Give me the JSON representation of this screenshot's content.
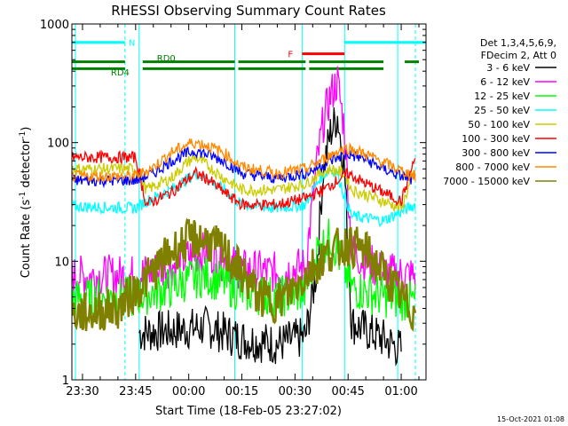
{
  "chart_data": {
    "type": "line",
    "title": "RHESSI Observing Summary Count Rates",
    "xlabel": "Start Time (18-Feb-05 23:27:02)",
    "ylabel": "Count Rate (s",
    "ylabel_sup": "-1",
    "ylabel_tail": " detector",
    "ylabel_sup2": "-1",
    "ylabel_close": ")",
    "yscale": "log",
    "ylim": [
      1,
      1000
    ],
    "xlim": [
      "23:27",
      "01:07"
    ],
    "y_ticks": [
      "1",
      "10",
      "100",
      "1000"
    ],
    "x_ticks": [
      "23:30",
      "23:45",
      "00:00",
      "00:15",
      "00:30",
      "00:45",
      "01:00"
    ],
    "legend_header": [
      "Det 1,3,4,5,6,9,",
      "FDecim 2, Att 0"
    ],
    "legend_position": "right",
    "series": [
      {
        "name": "3 - 6 keV",
        "color": "#000000",
        "points": [
          [
            "23:46",
            2.5
          ],
          [
            "23:55",
            2.6
          ],
          [
            "00:05",
            2.8
          ],
          [
            "00:15",
            2.2
          ],
          [
            "00:25",
            2.0
          ],
          [
            "00:33",
            2.3
          ],
          [
            "00:36",
            8
          ],
          [
            "00:38",
            60
          ],
          [
            "00:40",
            120
          ],
          [
            "00:42",
            170
          ],
          [
            "00:44",
            60
          ],
          [
            "00:46",
            3
          ],
          [
            "00:55",
            2.2
          ],
          [
            "01:00",
            1.8
          ]
        ]
      },
      {
        "name": "6 - 12 keV",
        "color": "#ff00ff",
        "points": [
          [
            "23:27",
            7.5
          ],
          [
            "23:45",
            7.6
          ],
          [
            "23:55",
            9
          ],
          [
            "00:00",
            11
          ],
          [
            "00:05",
            12
          ],
          [
            "00:10",
            10
          ],
          [
            "00:15",
            8.5
          ],
          [
            "00:25",
            8
          ],
          [
            "00:33",
            9
          ],
          [
            "00:36",
            60
          ],
          [
            "00:38",
            150
          ],
          [
            "00:40",
            250
          ],
          [
            "00:42",
            330
          ],
          [
            "00:44",
            130
          ],
          [
            "00:46",
            12
          ],
          [
            "00:55",
            8
          ],
          [
            "01:04",
            7.5
          ]
        ]
      },
      {
        "name": "12 - 25 keV",
        "color": "#00ff00",
        "points": [
          [
            "23:27",
            4.8
          ],
          [
            "23:45",
            5
          ],
          [
            "23:55",
            6
          ],
          [
            "00:00",
            7
          ],
          [
            "00:05",
            7.5
          ],
          [
            "00:10",
            6.5
          ],
          [
            "00:15",
            5.5
          ],
          [
            "00:25",
            5
          ],
          [
            "00:33",
            5.5
          ],
          [
            "00:36",
            12
          ],
          [
            "00:40",
            16
          ],
          [
            "00:43",
            10
          ],
          [
            "00:46",
            6
          ],
          [
            "00:55",
            5
          ],
          [
            "01:04",
            4.5
          ]
        ]
      },
      {
        "name": "25 - 50 keV",
        "color": "#00ffff",
        "points": [
          [
            "23:27",
            29
          ],
          [
            "23:45",
            28
          ],
          [
            "23:48",
            32
          ],
          [
            "23:55",
            40
          ],
          [
            "00:00",
            50
          ],
          [
            "00:02",
            55
          ],
          [
            "00:05",
            50
          ],
          [
            "00:10",
            40
          ],
          [
            "00:15",
            30
          ],
          [
            "00:25",
            28
          ],
          [
            "00:33",
            30
          ],
          [
            "00:37",
            50
          ],
          [
            "00:40",
            60
          ],
          [
            "00:42",
            55
          ],
          [
            "00:44",
            35
          ],
          [
            "00:46",
            24
          ],
          [
            "00:55",
            22
          ],
          [
            "01:04",
            30
          ]
        ]
      },
      {
        "name": "50 - 100 keV",
        "color": "#cccc00",
        "points": [
          [
            "23:27",
            60
          ],
          [
            "23:45",
            60
          ],
          [
            "23:48",
            40
          ],
          [
            "23:55",
            50
          ],
          [
            "00:00",
            70
          ],
          [
            "00:02",
            75
          ],
          [
            "00:05",
            65
          ],
          [
            "00:10",
            50
          ],
          [
            "00:15",
            40
          ],
          [
            "00:25",
            40
          ],
          [
            "00:33",
            45
          ],
          [
            "00:37",
            55
          ],
          [
            "00:40",
            60
          ],
          [
            "00:44",
            55
          ],
          [
            "00:46",
            40
          ],
          [
            "00:55",
            32
          ],
          [
            "01:00",
            28
          ],
          [
            "01:04",
            60
          ]
        ]
      },
      {
        "name": "100 - 300 keV",
        "color": "#ff0000",
        "points": [
          [
            "23:27",
            75
          ],
          [
            "23:45",
            75
          ],
          [
            "23:48",
            30
          ],
          [
            "23:55",
            38
          ],
          [
            "00:00",
            50
          ],
          [
            "00:02",
            55
          ],
          [
            "00:05",
            50
          ],
          [
            "00:10",
            38
          ],
          [
            "00:15",
            30
          ],
          [
            "00:25",
            30
          ],
          [
            "00:33",
            34
          ],
          [
            "00:38",
            40
          ],
          [
            "00:42",
            48
          ],
          [
            "00:45",
            55
          ],
          [
            "00:50",
            45
          ],
          [
            "00:55",
            38
          ],
          [
            "01:00",
            32
          ],
          [
            "01:04",
            75
          ]
        ]
      },
      {
        "name": "300 - 800 keV",
        "color": "#0000ff",
        "points": [
          [
            "23:27",
            48
          ],
          [
            "23:45",
            48
          ],
          [
            "23:50",
            55
          ],
          [
            "23:55",
            70
          ],
          [
            "00:00",
            82
          ],
          [
            "00:02",
            85
          ],
          [
            "00:05",
            80
          ],
          [
            "00:10",
            70
          ],
          [
            "00:15",
            55
          ],
          [
            "00:25",
            50
          ],
          [
            "00:33",
            55
          ],
          [
            "00:38",
            65
          ],
          [
            "00:42",
            75
          ],
          [
            "00:45",
            80
          ],
          [
            "00:50",
            72
          ],
          [
            "00:55",
            60
          ],
          [
            "01:00",
            52
          ],
          [
            "01:04",
            48
          ]
        ]
      },
      {
        "name": "800 - 7000 keV",
        "color": "#ff8800",
        "points": [
          [
            "23:27",
            52
          ],
          [
            "23:45",
            52
          ],
          [
            "23:50",
            62
          ],
          [
            "23:55",
            82
          ],
          [
            "00:00",
            98
          ],
          [
            "00:02",
            100
          ],
          [
            "00:05",
            95
          ],
          [
            "00:10",
            82
          ],
          [
            "00:15",
            62
          ],
          [
            "00:25",
            55
          ],
          [
            "00:33",
            60
          ],
          [
            "00:38",
            72
          ],
          [
            "00:42",
            85
          ],
          [
            "00:45",
            90
          ],
          [
            "00:50",
            80
          ],
          [
            "00:55",
            68
          ],
          [
            "01:00",
            58
          ],
          [
            "01:04",
            52
          ]
        ]
      },
      {
        "name": "7000 - 15000 keV",
        "color": "#808000",
        "points": [
          [
            "23:27",
            3.5
          ],
          [
            "23:40",
            4
          ],
          [
            "23:48",
            7
          ],
          [
            "23:55",
            12
          ],
          [
            "00:00",
            15
          ],
          [
            "00:02",
            15.5
          ],
          [
            "00:05",
            15
          ],
          [
            "00:10",
            12
          ],
          [
            "00:15",
            8
          ],
          [
            "00:20",
            5
          ],
          [
            "00:25",
            4.5
          ],
          [
            "00:30",
            6
          ],
          [
            "00:35",
            9
          ],
          [
            "00:40",
            12
          ],
          [
            "00:45",
            14
          ],
          [
            "00:50",
            12
          ],
          [
            "00:55",
            8
          ],
          [
            "01:00",
            5
          ],
          [
            "01:04",
            3.5
          ]
        ]
      }
    ],
    "annotations": [
      {
        "text": "N",
        "color": "#00ffff"
      },
      {
        "text": "RD0",
        "color": "#008000"
      },
      {
        "text": "RD4",
        "color": "#008000"
      },
      {
        "text": "F",
        "color": "#ff0000"
      }
    ],
    "bars": [
      {
        "label": "N",
        "color": "#00ffff",
        "y": 700,
        "segments": [
          [
            "23:27",
            "23:42"
          ],
          [
            "00:44",
            "01:07"
          ]
        ]
      },
      {
        "label": "F",
        "color": "#ff0000",
        "y": 560,
        "segments": [
          [
            "00:32",
            "00:44"
          ]
        ]
      },
      {
        "label": "RD0",
        "color": "#008000",
        "y": 480,
        "segments": [
          [
            "23:27",
            "23:42"
          ],
          [
            "23:47",
            "00:13"
          ],
          [
            "00:14",
            "00:33"
          ],
          [
            "00:34",
            "00:55"
          ],
          [
            "01:01",
            "01:05"
          ]
        ]
      },
      {
        "label": "RD4",
        "color": "#008000",
        "y": 420,
        "segments": [
          [
            "23:27",
            "23:42"
          ],
          [
            "23:47",
            "00:13"
          ],
          [
            "00:14",
            "00:33"
          ],
          [
            "00:34",
            "00:55"
          ]
        ]
      }
    ],
    "vlines": [
      {
        "time": "23:28",
        "color": "#00ffff",
        "style": "solid"
      },
      {
        "time": "23:42",
        "color": "#00ffff",
        "style": "dashed"
      },
      {
        "time": "23:46",
        "color": "#00ffff",
        "style": "solid"
      },
      {
        "time": "00:13",
        "color": "#00ffff",
        "style": "solid"
      },
      {
        "time": "00:32",
        "color": "#00ffff",
        "style": "solid"
      },
      {
        "time": "00:44",
        "color": "#00ffff",
        "style": "solid"
      },
      {
        "time": "00:59",
        "color": "#00ffff",
        "style": "solid"
      },
      {
        "time": "01:04",
        "color": "#00ffff",
        "style": "dashed"
      }
    ]
  },
  "footer_timestamp": "15-Oct-2021 01:08"
}
